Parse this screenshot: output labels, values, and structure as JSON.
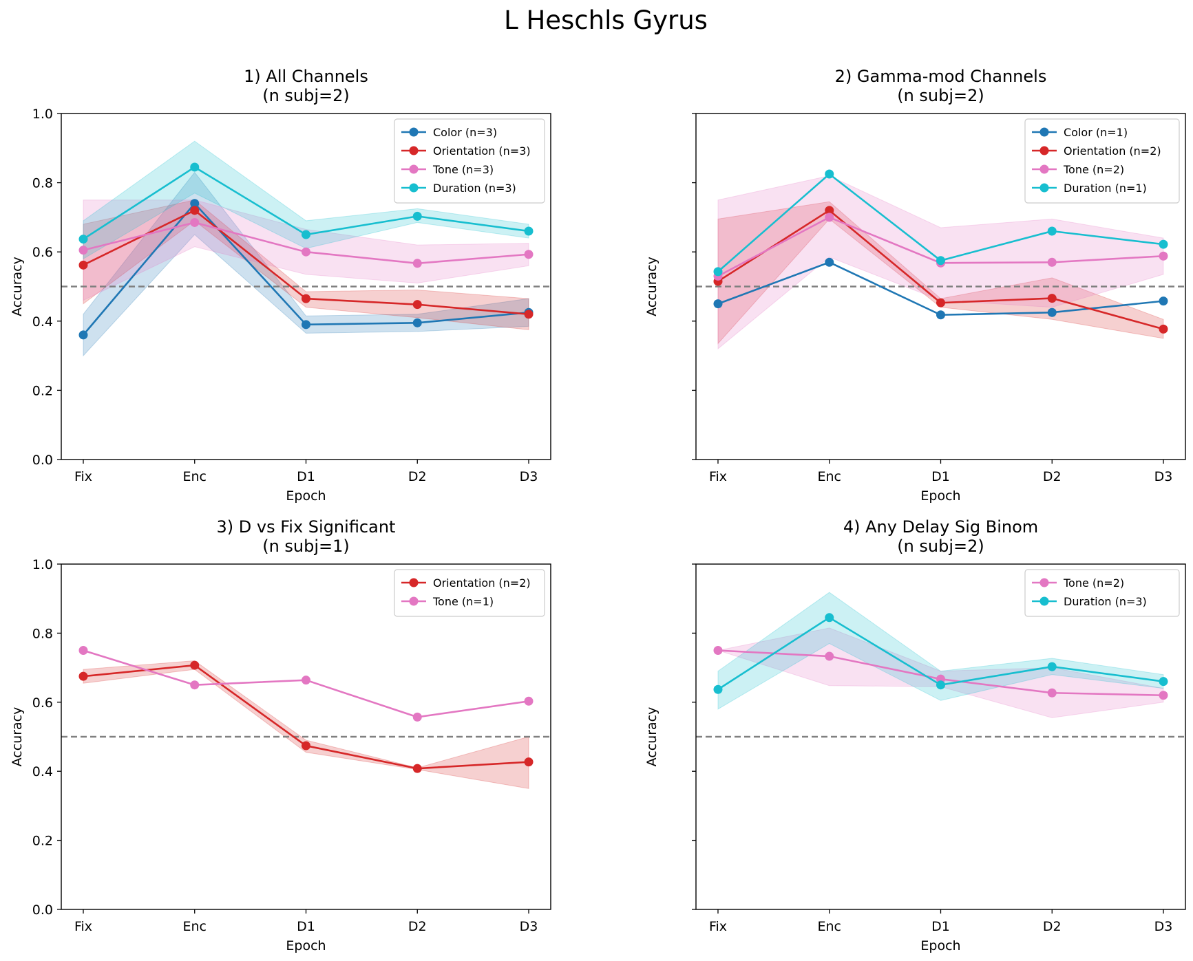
{
  "figure": {
    "suptitle": "L Heschls Gyrus"
  },
  "colors": {
    "Color": "#1f77b4",
    "Orientation": "#d62728",
    "Tone": "#e377c2",
    "Duration": "#17becf",
    "chance_line": "#808080"
  },
  "chart_data": [
    {
      "type": "line",
      "title": "1) All Channels\n(n subj=2)",
      "xlabel": "Epoch",
      "ylabel": "Accuracy",
      "categories": [
        "Fix",
        "Enc",
        "D1",
        "D2",
        "D3"
      ],
      "ylim": [
        0,
        1
      ],
      "yticks": [
        "0.0",
        "0.2",
        "0.4",
        "0.6",
        "0.8",
        "1.0"
      ],
      "show_ytick_labels": true,
      "chance_level": 0.5,
      "legend_position": "top-right",
      "series": [
        {
          "name": "Color (n=3)",
          "key": "Color",
          "values": [
            0.36,
            0.74,
            0.39,
            0.395,
            0.425
          ],
          "lower": [
            0.3,
            0.65,
            0.365,
            0.37,
            0.385
          ],
          "upper": [
            0.42,
            0.83,
            0.415,
            0.42,
            0.465
          ]
        },
        {
          "name": "Orientation (n=3)",
          "key": "Orientation",
          "values": [
            0.562,
            0.72,
            0.465,
            0.448,
            0.42
          ],
          "lower": [
            0.45,
            0.69,
            0.44,
            0.41,
            0.375
          ],
          "upper": [
            0.68,
            0.75,
            0.485,
            0.49,
            0.465
          ]
        },
        {
          "name": "Tone (n=3)",
          "key": "Tone",
          "values": [
            0.605,
            0.685,
            0.6,
            0.567,
            0.593
          ],
          "lower": [
            0.46,
            0.615,
            0.535,
            0.51,
            0.56
          ],
          "upper": [
            0.75,
            0.75,
            0.665,
            0.62,
            0.625
          ]
        },
        {
          "name": "Duration (n=3)",
          "key": "Duration",
          "values": [
            0.637,
            0.845,
            0.65,
            0.703,
            0.66
          ],
          "lower": [
            0.58,
            0.77,
            0.61,
            0.685,
            0.64
          ],
          "upper": [
            0.69,
            0.92,
            0.69,
            0.725,
            0.68
          ]
        }
      ]
    },
    {
      "type": "line",
      "title": "2) Gamma-mod Channels\n(n subj=2)",
      "xlabel": "Epoch",
      "ylabel": "Accuracy",
      "categories": [
        "Fix",
        "Enc",
        "D1",
        "D2",
        "D3"
      ],
      "ylim": [
        0,
        1
      ],
      "yticks": [
        "0.0",
        "0.2",
        "0.4",
        "0.6",
        "0.8",
        "1.0"
      ],
      "show_ytick_labels": false,
      "chance_level": 0.5,
      "legend_position": "top-right",
      "series": [
        {
          "name": "Color (n=1)",
          "key": "Color",
          "values": [
            0.45,
            0.57,
            0.418,
            0.425,
            0.458
          ]
        },
        {
          "name": "Orientation (n=2)",
          "key": "Orientation",
          "values": [
            0.515,
            0.72,
            0.453,
            0.466,
            0.377
          ],
          "lower": [
            0.335,
            0.695,
            0.44,
            0.405,
            0.35
          ],
          "upper": [
            0.695,
            0.745,
            0.465,
            0.525,
            0.405
          ]
        },
        {
          "name": "Tone (n=2)",
          "key": "Tone",
          "values": [
            0.53,
            0.7,
            0.568,
            0.57,
            0.588
          ],
          "lower": [
            0.32,
            0.585,
            0.46,
            0.44,
            0.535
          ],
          "upper": [
            0.75,
            0.82,
            0.67,
            0.695,
            0.64
          ]
        },
        {
          "name": "Duration (n=1)",
          "key": "Duration",
          "values": [
            0.543,
            0.825,
            0.575,
            0.66,
            0.622
          ]
        }
      ]
    },
    {
      "type": "line",
      "title": "3) D vs Fix Significant\n(n subj=1)",
      "xlabel": "Epoch",
      "ylabel": "Accuracy",
      "categories": [
        "Fix",
        "Enc",
        "D1",
        "D2",
        "D3"
      ],
      "ylim": [
        0,
        1
      ],
      "yticks": [
        "0.0",
        "0.2",
        "0.4",
        "0.6",
        "0.8",
        "1.0"
      ],
      "show_ytick_labels": true,
      "chance_level": 0.5,
      "legend_position": "top-right",
      "series": [
        {
          "name": "Orientation (n=2)",
          "key": "Orientation",
          "values": [
            0.675,
            0.707,
            0.474,
            0.408,
            0.427
          ],
          "lower": [
            0.655,
            0.695,
            0.455,
            0.405,
            0.35
          ],
          "upper": [
            0.695,
            0.72,
            0.49,
            0.41,
            0.5
          ]
        },
        {
          "name": "Tone (n=1)",
          "key": "Tone",
          "values": [
            0.75,
            0.65,
            0.664,
            0.557,
            0.603
          ]
        }
      ]
    },
    {
      "type": "line",
      "title": "4) Any Delay Sig Binom\n(n subj=2)",
      "xlabel": "Epoch",
      "ylabel": "Accuracy",
      "categories": [
        "Fix",
        "Enc",
        "D1",
        "D2",
        "D3"
      ],
      "ylim": [
        0,
        1
      ],
      "yticks": [
        "0.0",
        "0.2",
        "0.4",
        "0.6",
        "0.8",
        "1.0"
      ],
      "show_ytick_labels": false,
      "chance_level": 0.5,
      "legend_position": "top-right",
      "series": [
        {
          "name": "Tone (n=2)",
          "key": "Tone",
          "values": [
            0.75,
            0.733,
            0.667,
            0.627,
            0.62
          ],
          "lower": [
            0.75,
            0.648,
            0.645,
            0.555,
            0.6
          ],
          "upper": [
            0.75,
            0.815,
            0.69,
            0.7,
            0.64
          ]
        },
        {
          "name": "Duration (n=3)",
          "key": "Duration",
          "values": [
            0.637,
            0.845,
            0.65,
            0.703,
            0.66
          ],
          "lower": [
            0.58,
            0.77,
            0.605,
            0.68,
            0.64
          ],
          "upper": [
            0.69,
            0.918,
            0.69,
            0.727,
            0.68
          ]
        }
      ]
    }
  ]
}
